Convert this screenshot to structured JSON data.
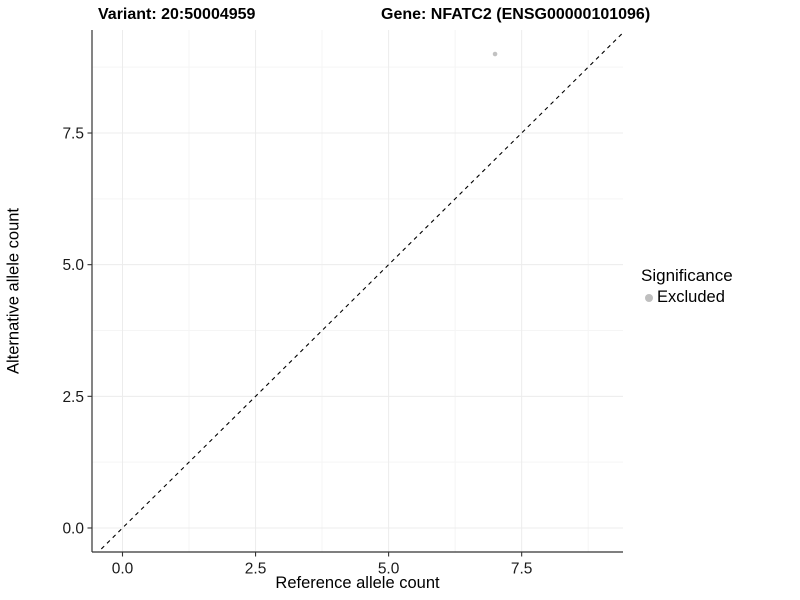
{
  "chart_data": {
    "type": "scatter",
    "titles": {
      "left": "Variant: 20:50004959",
      "right": "Gene: NFATC2 (ENSG00000101096)"
    },
    "xlabel": "Reference allele count",
    "ylabel": "Alternative allele count",
    "xlim": [
      -0.573,
      9.404
    ],
    "ylim": [
      -0.456,
      9.456
    ],
    "x_ticks": {
      "values": [
        0,
        2.5,
        5,
        7.5
      ],
      "labels": [
        "0.0",
        "2.5",
        "5.0",
        "7.5"
      ]
    },
    "y_ticks": {
      "values": [
        0,
        2.5,
        5,
        7.5
      ],
      "labels": [
        "0.0",
        "2.5",
        "5.0",
        "7.5"
      ]
    },
    "x_minor_ticks": [
      1.25,
      3.75,
      6.25,
      8.75
    ],
    "y_minor_ticks": [
      1.25,
      3.75,
      6.25,
      8.75
    ],
    "grid": {
      "major_color": "#ececec",
      "minor_color": "#f5f5f5",
      "show": true
    },
    "axis_color": "#333333",
    "tick_label_color": "#1a1a1a",
    "points": [
      {
        "x": 7,
        "y": 9,
        "series": "Excluded",
        "color": "#c2c2c2",
        "radius": 2.3
      }
    ],
    "identity_line": {
      "slope": 1,
      "intercept": 0,
      "style": "dashed",
      "color": "#000000"
    },
    "legend": {
      "title": "Significance",
      "position": "right",
      "items": [
        {
          "label": "Excluded",
          "color": "#bfbfbf"
        }
      ]
    }
  }
}
